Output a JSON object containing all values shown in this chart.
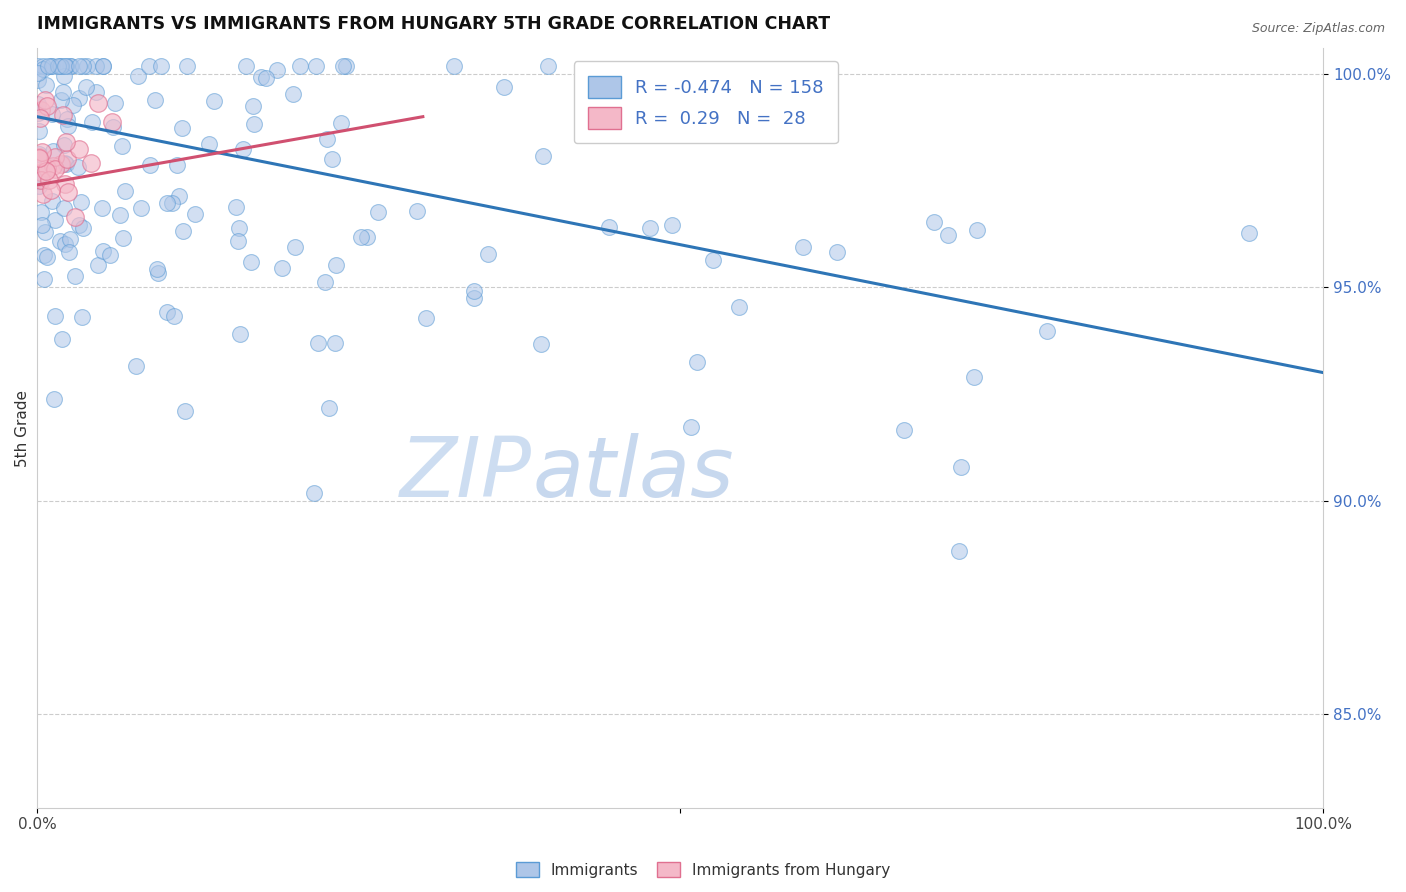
{
  "title": "IMMIGRANTS VS IMMIGRANTS FROM HUNGARY 5TH GRADE CORRELATION CHART",
  "source_text": "Source: ZipAtlas.com",
  "ylabel": "5th Grade",
  "blue_R": -0.474,
  "blue_N": 158,
  "pink_R": 0.29,
  "pink_N": 28,
  "blue_color": "#aec6e8",
  "blue_edge_color": "#5b9bd5",
  "blue_line_color": "#2e75b6",
  "pink_color": "#f4b8c8",
  "pink_edge_color": "#e07090",
  "pink_line_color": "#d05070",
  "legend_label_blue": "Immigrants",
  "legend_label_pink": "Immigrants from Hungary",
  "watermark_zip": "ZIP",
  "watermark_atlas": "atlas",
  "ytick_color": "#4472c4",
  "xmin": 0.0,
  "xmax": 1.0,
  "ymin": 0.828,
  "ymax": 1.006,
  "blue_line_x0": 0.0,
  "blue_line_y0": 0.99,
  "blue_line_x1": 1.0,
  "blue_line_y1": 0.93,
  "pink_line_x0": 0.0,
  "pink_line_y0": 0.974,
  "pink_line_x1": 0.3,
  "pink_line_y1": 0.99
}
